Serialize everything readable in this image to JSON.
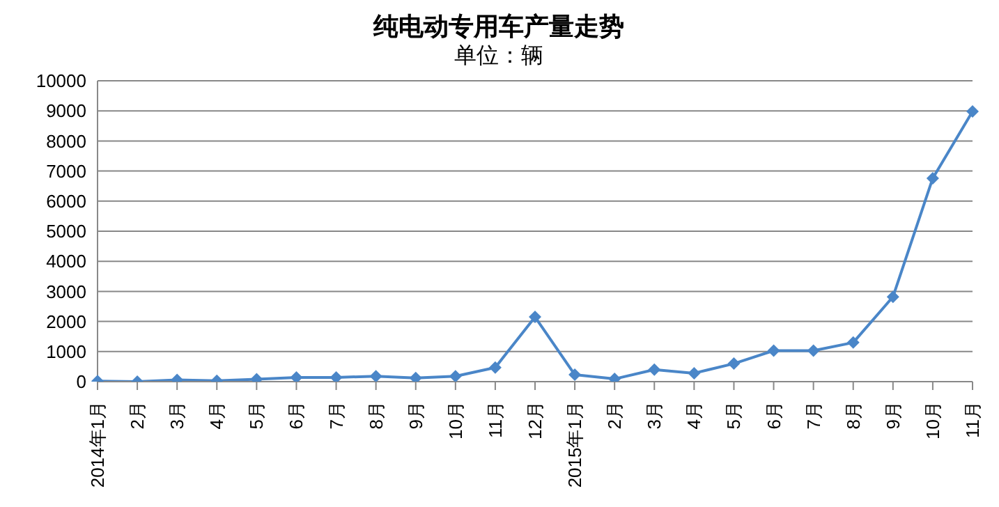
{
  "chart_data": {
    "type": "line",
    "title": "纯电动专用车产量走势",
    "subtitle": "单位：辆",
    "categories": [
      "2014年1月",
      "2月",
      "3月",
      "4月",
      "5月",
      "6月",
      "7月",
      "8月",
      "9月",
      "10月",
      "11月",
      "12月",
      "2015年1月",
      "2月",
      "3月",
      "4月",
      "5月",
      "6月",
      "7月",
      "8月",
      "9月",
      "10月",
      "11月"
    ],
    "series": [
      {
        "color": "#4a86c8",
        "values": [
          20,
          0,
          60,
          30,
          80,
          140,
          140,
          180,
          120,
          180,
          470,
          2150,
          230,
          90,
          400,
          280,
          600,
          1030,
          1030,
          1300,
          2820,
          6760,
          8980
        ]
      }
    ],
    "ylim": [
      0,
      10000
    ],
    "yticks": [
      0,
      1000,
      2000,
      3000,
      4000,
      5000,
      6000,
      7000,
      8000,
      9000,
      10000
    ],
    "grid": "y",
    "legend": false,
    "marker": "diamond",
    "line_style": "solid"
  }
}
